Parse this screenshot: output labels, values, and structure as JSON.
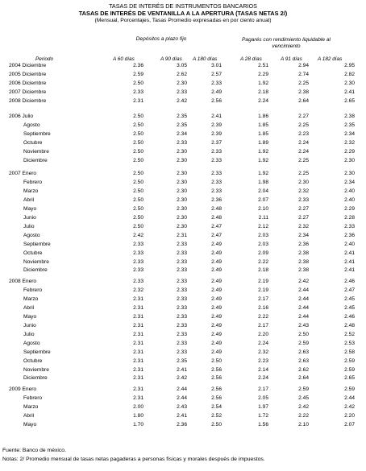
{
  "header": {
    "title1": "TASAS DE INTERÉS DE INSTRUMENTOS BANCARIOS",
    "title2": "TASAS DE INTERÉS DE VENTANILLA A LA APERTURA (TASAS NETAS 2/)",
    "title3": "(Mensual, Porcentajes, Tasas Promedio expresadas en por ciento anual)"
  },
  "groups": {
    "depositos": "Depósitos a plazo fijo",
    "pagares": "Pagarés con rendimiento liquidable al vencimiento"
  },
  "columns": [
    "Periodo",
    "A 60 días",
    "A 90 días",
    "A 180 días",
    "A 28 días",
    "A 91 días",
    "A 182 días"
  ],
  "sections": [
    {
      "rows": [
        {
          "label": "2004 Diciembre",
          "v": [
            "2.36",
            "3.05",
            "3.01",
            "2.51",
            "2.94",
            "2.95"
          ]
        },
        {
          "label": "2005 Diciembre",
          "v": [
            "2.59",
            "2.62",
            "2.57",
            "2.29",
            "2.74",
            "2.82"
          ]
        },
        {
          "label": "2006 Diciembre",
          "v": [
            "2.50",
            "2.30",
            "2.33",
            "1.92",
            "2.25",
            "2.30"
          ]
        },
        {
          "label": "2007 Diciembre",
          "v": [
            "2.33",
            "2.33",
            "2.49",
            "2.18",
            "2.38",
            "2.41"
          ]
        },
        {
          "label": "2008 Diciembre",
          "v": [
            "2.31",
            "2.42",
            "2.56",
            "2.24",
            "2.64",
            "2.65"
          ]
        }
      ]
    },
    {
      "rows": [
        {
          "label": "2006 Julio",
          "v": [
            "2.50",
            "2.35",
            "2.41",
            "1.86",
            "2.27",
            "2.38"
          ]
        },
        {
          "label": "Agosto",
          "v": [
            "2.50",
            "2.35",
            "2.39",
            "1.85",
            "2.25",
            "2.35"
          ]
        },
        {
          "label": "Septiembre",
          "v": [
            "2.50",
            "2.34",
            "2.39",
            "1.85",
            "2.23",
            "2.34"
          ]
        },
        {
          "label": "Octubre",
          "v": [
            "2.50",
            "2.33",
            "2.37",
            "1.89",
            "2.24",
            "2.32"
          ]
        },
        {
          "label": "Noviembre",
          "v": [
            "2.50",
            "2.30",
            "2.33",
            "1.92",
            "2.24",
            "2.29"
          ]
        },
        {
          "label": "Diciembre",
          "v": [
            "2.50",
            "2.30",
            "2.33",
            "1.92",
            "2.25",
            "2.30"
          ]
        }
      ]
    },
    {
      "rows": [
        {
          "label": "2007 Enero",
          "v": [
            "2.50",
            "2.30",
            "2.33",
            "1.92",
            "2.25",
            "2.30"
          ]
        },
        {
          "label": "Febrero",
          "v": [
            "2.50",
            "2.30",
            "2.33",
            "1.98",
            "2.30",
            "2.34"
          ]
        },
        {
          "label": "Marzo",
          "v": [
            "2.50",
            "2.30",
            "2.33",
            "2.04",
            "2.32",
            "2.40"
          ]
        },
        {
          "label": "Abril",
          "v": [
            "2.50",
            "2.30",
            "2.36",
            "2.07",
            "2.33",
            "2.40"
          ]
        },
        {
          "label": "Mayo",
          "v": [
            "2.50",
            "2.30",
            "2.48",
            "2.10",
            "2.27",
            "2.29"
          ]
        },
        {
          "label": "Junio",
          "v": [
            "2.50",
            "2.30",
            "2.48",
            "2.11",
            "2.27",
            "2.28"
          ]
        },
        {
          "label": "Julio",
          "v": [
            "2.50",
            "2.30",
            "2.47",
            "2.12",
            "2.32",
            "2.33"
          ]
        },
        {
          "label": "Agosto",
          "v": [
            "2.42",
            "2.31",
            "2.47",
            "2.03",
            "2.34",
            "2.36"
          ]
        },
        {
          "label": "Septiembre",
          "v": [
            "2.33",
            "2.33",
            "2.49",
            "2.03",
            "2.36",
            "2.40"
          ]
        },
        {
          "label": "Octubre",
          "v": [
            "2.33",
            "2.33",
            "2.49",
            "2.09",
            "2.38",
            "2.41"
          ]
        },
        {
          "label": "Noviembre",
          "v": [
            "2.33",
            "2.33",
            "2.49",
            "2.22",
            "2.38",
            "2.41"
          ]
        },
        {
          "label": "Diciembre",
          "v": [
            "2.33",
            "2.33",
            "2.49",
            "2.18",
            "2.38",
            "2.41"
          ]
        }
      ]
    },
    {
      "rows": [
        {
          "label": "2008 Enero",
          "v": [
            "2.33",
            "2.33",
            "2.49",
            "2.19",
            "2.42",
            "2.46"
          ]
        },
        {
          "label": "Febrero",
          "v": [
            "2.32",
            "2.33",
            "2.49",
            "2.19",
            "2.44",
            "2.47"
          ]
        },
        {
          "label": "Marzo",
          "v": [
            "2.31",
            "2.33",
            "2.49",
            "2.17",
            "2.44",
            "2.45"
          ]
        },
        {
          "label": "Abril",
          "v": [
            "2.31",
            "2.33",
            "2.49",
            "2.16",
            "2.44",
            "2.45"
          ]
        },
        {
          "label": "Mayo",
          "v": [
            "2.31",
            "2.33",
            "2.49",
            "2.22",
            "2.44",
            "2.46"
          ]
        },
        {
          "label": "Junio",
          "v": [
            "2.31",
            "2.33",
            "2.49",
            "2.17",
            "2.43",
            "2.48"
          ]
        },
        {
          "label": "Julio",
          "v": [
            "2.31",
            "2.33",
            "2.49",
            "2.20",
            "2.50",
            "2.52"
          ]
        },
        {
          "label": "Agosto",
          "v": [
            "2.31",
            "2.33",
            "2.49",
            "2.24",
            "2.59",
            "2.53"
          ]
        },
        {
          "label": "Septiembre",
          "v": [
            "2.31",
            "2.33",
            "2.49",
            "2.32",
            "2.63",
            "2.58"
          ]
        },
        {
          "label": "Octubre",
          "v": [
            "2.31",
            "2.35",
            "2.50",
            "2.23",
            "2.63",
            "2.59"
          ]
        },
        {
          "label": "Noviembre",
          "v": [
            "2.31",
            "2.41",
            "2.56",
            "2.14",
            "2.62",
            "2.59"
          ]
        },
        {
          "label": "Diciembre",
          "v": [
            "2.31",
            "2.42",
            "2.56",
            "2.24",
            "2.64",
            "2.65"
          ]
        }
      ]
    },
    {
      "rows": [
        {
          "label": "2009 Enero",
          "v": [
            "2.31",
            "2.44",
            "2.56",
            "2.17",
            "2.59",
            "2.59"
          ]
        },
        {
          "label": "Febrero",
          "v": [
            "2.31",
            "2.44",
            "2.56",
            "2.05",
            "2.45",
            "2.44"
          ]
        },
        {
          "label": "Marzo",
          "v": [
            "2.00",
            "2.43",
            "2.54",
            "1.97",
            "2.42",
            "2.42"
          ]
        },
        {
          "label": "Abril",
          "v": [
            "1.80",
            "2.41",
            "2.52",
            "1.72",
            "2.22",
            "2.20"
          ]
        },
        {
          "label": "Mayo",
          "v": [
            "1.70",
            "2.36",
            "2.50",
            "1.56",
            "2.10",
            "2.07"
          ]
        }
      ]
    }
  ],
  "footer": {
    "fuente": "Fuente: Banco de méxico.",
    "notas": "Notas: 2/ Promedio mensual de tasas netas pagaderas a personas físicas y morales después de impuestos."
  }
}
